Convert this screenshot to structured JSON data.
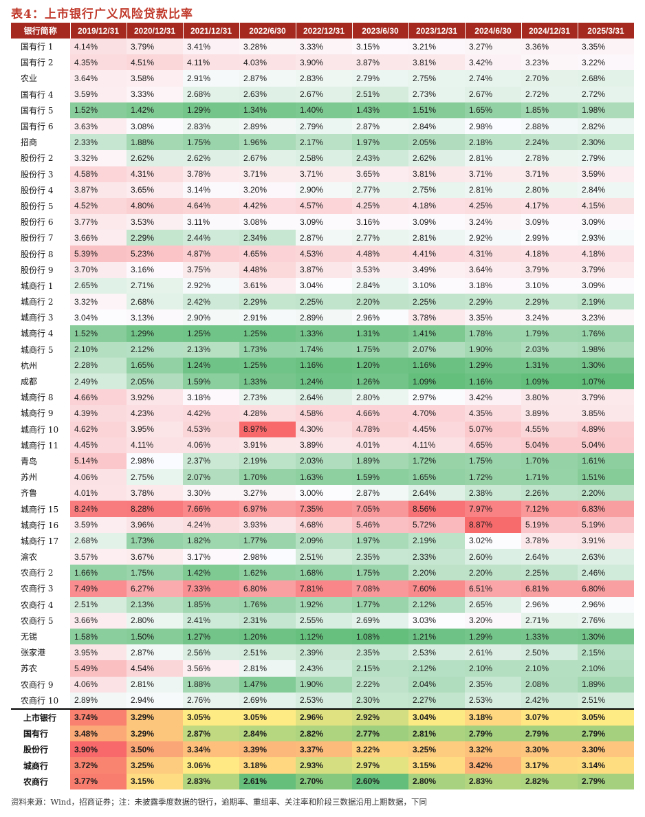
{
  "title": "表4：上市银行广义风险贷款比率",
  "header": {
    "first_col": "银行简称",
    "dates": [
      "2019/12/31",
      "2020/12/31",
      "2021/12/31",
      "2022/6/30",
      "2022/12/31",
      "2023/6/30",
      "2023/12/31",
      "2024/6/30",
      "2024/12/31",
      "2025/3/31"
    ]
  },
  "rows": [
    {
      "name": "国有行 1",
      "values": [
        "4.14%",
        "3.79%",
        "3.41%",
        "3.28%",
        "3.33%",
        "3.15%",
        "3.21%",
        "3.27%",
        "3.36%",
        "3.35%"
      ]
    },
    {
      "name": "国有行 2",
      "values": [
        "4.35%",
        "4.51%",
        "4.11%",
        "4.03%",
        "3.90%",
        "3.87%",
        "3.81%",
        "3.42%",
        "3.23%",
        "3.22%"
      ]
    },
    {
      "name": "农业",
      "values": [
        "3.64%",
        "3.58%",
        "2.91%",
        "2.87%",
        "2.83%",
        "2.79%",
        "2.75%",
        "2.74%",
        "2.70%",
        "2.68%"
      ]
    },
    {
      "name": "国有行 4",
      "values": [
        "3.59%",
        "3.33%",
        "2.68%",
        "2.63%",
        "2.67%",
        "2.51%",
        "2.73%",
        "2.67%",
        "2.72%",
        "2.72%"
      ]
    },
    {
      "name": "国有行 5",
      "values": [
        "1.52%",
        "1.42%",
        "1.29%",
        "1.34%",
        "1.40%",
        "1.43%",
        "1.51%",
        "1.65%",
        "1.85%",
        "1.98%"
      ]
    },
    {
      "name": "国有行 6",
      "values": [
        "3.63%",
        "3.08%",
        "2.83%",
        "2.89%",
        "2.79%",
        "2.87%",
        "2.84%",
        "2.98%",
        "2.88%",
        "2.82%"
      ]
    },
    {
      "name": "招商",
      "values": [
        "2.33%",
        "1.88%",
        "1.75%",
        "1.96%",
        "2.17%",
        "1.97%",
        "2.05%",
        "2.18%",
        "2.24%",
        "2.30%"
      ]
    },
    {
      "name": "股份行 2",
      "values": [
        "3.32%",
        "2.62%",
        "2.62%",
        "2.67%",
        "2.58%",
        "2.43%",
        "2.62%",
        "2.81%",
        "2.78%",
        "2.79%"
      ]
    },
    {
      "name": "股份行 3",
      "values": [
        "4.58%",
        "4.31%",
        "3.78%",
        "3.71%",
        "3.71%",
        "3.65%",
        "3.81%",
        "3.71%",
        "3.71%",
        "3.59%"
      ]
    },
    {
      "name": "股份行 4",
      "values": [
        "3.87%",
        "3.65%",
        "3.14%",
        "3.20%",
        "2.90%",
        "2.77%",
        "2.75%",
        "2.81%",
        "2.80%",
        "2.84%"
      ]
    },
    {
      "name": "股份行 5",
      "values": [
        "4.52%",
        "4.80%",
        "4.64%",
        "4.42%",
        "4.57%",
        "4.25%",
        "4.18%",
        "4.25%",
        "4.17%",
        "4.15%"
      ]
    },
    {
      "name": "股份行 6",
      "values": [
        "3.77%",
        "3.53%",
        "3.11%",
        "3.08%",
        "3.09%",
        "3.16%",
        "3.09%",
        "3.24%",
        "3.09%",
        "3.09%"
      ]
    },
    {
      "name": "股份行 7",
      "values": [
        "3.66%",
        "2.29%",
        "2.44%",
        "2.34%",
        "2.87%",
        "2.77%",
        "2.81%",
        "2.92%",
        "2.99%",
        "2.93%"
      ]
    },
    {
      "name": "股份行 8",
      "values": [
        "5.39%",
        "5.23%",
        "4.87%",
        "4.65%",
        "4.53%",
        "4.48%",
        "4.41%",
        "4.31%",
        "4.18%",
        "4.18%"
      ]
    },
    {
      "name": "股份行 9",
      "values": [
        "3.70%",
        "3.16%",
        "3.75%",
        "4.48%",
        "3.87%",
        "3.53%",
        "3.49%",
        "3.64%",
        "3.79%",
        "3.79%"
      ]
    },
    {
      "name": "城商行 1",
      "values": [
        "2.65%",
        "2.71%",
        "2.92%",
        "3.61%",
        "3.04%",
        "2.84%",
        "3.10%",
        "3.18%",
        "3.10%",
        "3.09%"
      ]
    },
    {
      "name": "城商行 2",
      "values": [
        "3.32%",
        "2.68%",
        "2.42%",
        "2.29%",
        "2.25%",
        "2.20%",
        "2.25%",
        "2.29%",
        "2.29%",
        "2.19%"
      ]
    },
    {
      "name": "城商行 3",
      "values": [
        "3.04%",
        "3.13%",
        "2.90%",
        "2.91%",
        "2.89%",
        "2.96%",
        "3.78%",
        "3.35%",
        "3.24%",
        "3.23%"
      ]
    },
    {
      "name": "城商行 4",
      "values": [
        "1.52%",
        "1.29%",
        "1.25%",
        "1.25%",
        "1.33%",
        "1.31%",
        "1.41%",
        "1.78%",
        "1.79%",
        "1.76%"
      ]
    },
    {
      "name": "城商行 5",
      "values": [
        "2.10%",
        "2.12%",
        "2.13%",
        "1.73%",
        "1.74%",
        "1.75%",
        "2.07%",
        "1.90%",
        "2.03%",
        "1.98%"
      ]
    },
    {
      "name": "杭州",
      "values": [
        "2.28%",
        "1.65%",
        "1.24%",
        "1.25%",
        "1.16%",
        "1.20%",
        "1.16%",
        "1.29%",
        "1.31%",
        "1.30%"
      ]
    },
    {
      "name": "成都",
      "values": [
        "2.49%",
        "2.05%",
        "1.59%",
        "1.33%",
        "1.24%",
        "1.26%",
        "1.09%",
        "1.16%",
        "1.09%",
        "1.07%"
      ]
    },
    {
      "name": "城商行 8",
      "values": [
        "4.66%",
        "3.92%",
        "3.18%",
        "2.73%",
        "2.64%",
        "2.80%",
        "2.97%",
        "3.42%",
        "3.80%",
        "3.79%"
      ]
    },
    {
      "name": "城商行 9",
      "values": [
        "4.39%",
        "4.23%",
        "4.42%",
        "4.28%",
        "4.58%",
        "4.66%",
        "4.70%",
        "4.35%",
        "3.89%",
        "3.85%"
      ]
    },
    {
      "name": "城商行 10",
      "values": [
        "4.62%",
        "3.95%",
        "4.53%",
        "8.97%",
        "4.30%",
        "4.78%",
        "4.45%",
        "5.07%",
        "4.55%",
        "4.89%"
      ]
    },
    {
      "name": "城商行 11",
      "values": [
        "4.45%",
        "4.11%",
        "4.06%",
        "3.91%",
        "3.89%",
        "4.01%",
        "4.11%",
        "4.65%",
        "5.04%",
        "5.04%"
      ]
    },
    {
      "name": "青岛",
      "values": [
        "5.14%",
        "2.98%",
        "2.37%",
        "2.19%",
        "2.03%",
        "1.89%",
        "1.72%",
        "1.75%",
        "1.70%",
        "1.61%"
      ]
    },
    {
      "name": "苏州",
      "values": [
        "4.06%",
        "2.75%",
        "2.07%",
        "1.70%",
        "1.63%",
        "1.59%",
        "1.65%",
        "1.72%",
        "1.71%",
        "1.51%"
      ]
    },
    {
      "name": "齐鲁",
      "values": [
        "4.01%",
        "3.78%",
        "3.30%",
        "3.27%",
        "3.00%",
        "2.87%",
        "2.64%",
        "2.38%",
        "2.26%",
        "2.20%"
      ]
    },
    {
      "name": "城商行 15",
      "values": [
        "8.24%",
        "8.28%",
        "7.66%",
        "6.97%",
        "7.35%",
        "7.05%",
        "8.56%",
        "7.97%",
        "7.12%",
        "6.83%"
      ]
    },
    {
      "name": "城商行 16",
      "values": [
        "3.59%",
        "3.96%",
        "4.24%",
        "3.93%",
        "4.68%",
        "5.46%",
        "5.72%",
        "8.87%",
        "5.19%",
        "5.19%"
      ]
    },
    {
      "name": "城商行 17",
      "values": [
        "2.68%",
        "1.73%",
        "1.82%",
        "1.77%",
        "2.09%",
        "1.97%",
        "2.19%",
        "3.02%",
        "3.78%",
        "3.91%"
      ]
    },
    {
      "name": "渝农",
      "values": [
        "3.57%",
        "3.67%",
        "3.17%",
        "2.98%",
        "2.51%",
        "2.35%",
        "2.33%",
        "2.60%",
        "2.64%",
        "2.63%"
      ]
    },
    {
      "name": "农商行 2",
      "values": [
        "1.66%",
        "1.75%",
        "1.42%",
        "1.62%",
        "1.68%",
        "1.75%",
        "2.20%",
        "2.20%",
        "2.25%",
        "2.46%"
      ]
    },
    {
      "name": "农商行 3",
      "values": [
        "7.49%",
        "6.27%",
        "7.33%",
        "6.80%",
        "7.81%",
        "7.08%",
        "7.60%",
        "6.51%",
        "6.81%",
        "6.80%"
      ]
    },
    {
      "name": "农商行 4",
      "values": [
        "2.51%",
        "2.13%",
        "1.85%",
        "1.76%",
        "1.92%",
        "1.77%",
        "2.12%",
        "2.65%",
        "2.96%",
        "2.96%"
      ]
    },
    {
      "name": "农商行 5",
      "values": [
        "3.66%",
        "2.80%",
        "2.41%",
        "2.31%",
        "2.55%",
        "2.69%",
        "3.03%",
        "3.20%",
        "2.71%",
        "2.76%"
      ]
    },
    {
      "name": "无锡",
      "values": [
        "1.58%",
        "1.50%",
        "1.27%",
        "1.20%",
        "1.12%",
        "1.08%",
        "1.21%",
        "1.29%",
        "1.33%",
        "1.30%"
      ]
    },
    {
      "name": "张家港",
      "values": [
        "3.95%",
        "2.87%",
        "2.56%",
        "2.51%",
        "2.39%",
        "2.35%",
        "2.53%",
        "2.61%",
        "2.50%",
        "2.15%"
      ]
    },
    {
      "name": "苏农",
      "values": [
        "5.49%",
        "4.54%",
        "3.56%",
        "2.81%",
        "2.43%",
        "2.15%",
        "2.12%",
        "2.10%",
        "2.10%",
        "2.10%"
      ]
    },
    {
      "name": "农商行 9",
      "values": [
        "4.06%",
        "2.81%",
        "1.88%",
        "1.47%",
        "1.90%",
        "2.22%",
        "2.04%",
        "2.35%",
        "2.08%",
        "1.89%"
      ]
    },
    {
      "name": "农商行 10",
      "values": [
        "2.89%",
        "2.94%",
        "2.76%",
        "2.69%",
        "2.53%",
        "2.30%",
        "2.27%",
        "2.53%",
        "2.42%",
        "2.51%"
      ]
    }
  ],
  "summary": [
    {
      "name": "上市银行",
      "values": [
        "3.74%",
        "3.29%",
        "3.05%",
        "3.05%",
        "2.96%",
        "2.92%",
        "3.04%",
        "3.18%",
        "3.07%",
        "3.05%"
      ]
    },
    {
      "name": "国有行",
      "values": [
        "3.48%",
        "3.29%",
        "2.87%",
        "2.84%",
        "2.82%",
        "2.77%",
        "2.81%",
        "2.79%",
        "2.79%",
        "2.79%"
      ]
    },
    {
      "name": "股份行",
      "values": [
        "3.90%",
        "3.50%",
        "3.34%",
        "3.39%",
        "3.37%",
        "3.22%",
        "3.25%",
        "3.32%",
        "3.30%",
        "3.30%"
      ]
    },
    {
      "name": "城商行",
      "values": [
        "3.72%",
        "3.25%",
        "3.06%",
        "3.18%",
        "2.93%",
        "2.97%",
        "3.15%",
        "3.42%",
        "3.17%",
        "3.14%"
      ]
    },
    {
      "name": "农商行",
      "values": [
        "3.77%",
        "3.15%",
        "2.83%",
        "2.61%",
        "2.70%",
        "2.60%",
        "2.80%",
        "2.83%",
        "2.82%",
        "2.79%"
      ]
    }
  ],
  "footer": "资料来源：Wind，招商证券；注：未披露季度数据的银行，逾期率、重组率、关注率和阶段三数据沿用上期数据，下同"
}
